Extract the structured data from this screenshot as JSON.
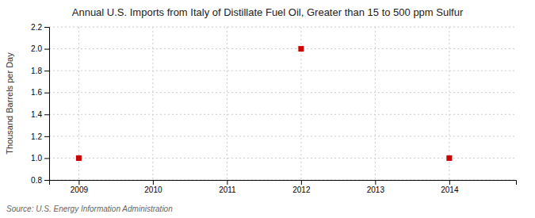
{
  "chart_data": {
    "type": "scatter",
    "title": "Annual U.S. Imports from Italy of Distillate Fuel Oil, Greater than 15 to 500 ppm Sulfur",
    "y_label": "Thousand Barrels per Day",
    "annotations": [
      "Source: U.S. Energy Information Administration"
    ],
    "x": [
      2009,
      2012,
      2014
    ],
    "values": [
      1.0,
      2.0,
      1.0
    ],
    "color": "#cc0000",
    "marker": "square",
    "xlim": [
      2008.6,
      2014.9
    ],
    "ylim": [
      0.8,
      2.2
    ],
    "xticks": [
      2009,
      2010,
      2011,
      2012,
      2013,
      2014
    ],
    "yticks": [
      0.8,
      {
        "value": 1.0,
        "label": "1.0"
      },
      1.2,
      1.4,
      1.6,
      1.8,
      {
        "value": 2.0,
        "label": "2.0"
      },
      2.2
    ],
    "grid": true
  }
}
